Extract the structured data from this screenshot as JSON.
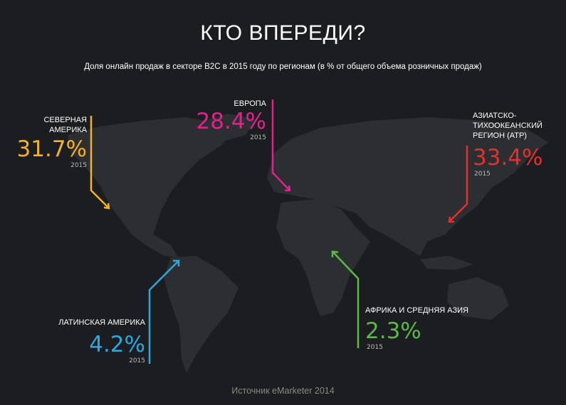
{
  "title": "КТО ВПЕРЕДИ?",
  "subtitle": "Доля онлайн продаж в секторе B2C в 2015 году по регионам (в % от общего объема розничных продаж)",
  "regions": [
    {
      "name": "СЕВЕРНАЯ АМЕРИКА",
      "value": "31.7%",
      "year": "2015",
      "color": "#f4b223"
    },
    {
      "name": "ЕВРОПА",
      "value": "28.4%",
      "year": "2015",
      "color": "#e2228c"
    },
    {
      "name": "АЗИАТСКО-ТИХООКЕАНСКИЙ РЕГИОН (АТР)",
      "name_lines": [
        "АЗИАТСКО-",
        "ТИХООКЕАНСКИЙ",
        "РЕГИОН (АТР)"
      ],
      "value": "33.4%",
      "year": "2015",
      "color": "#e2312f"
    },
    {
      "name": "ЛАТИНСКАЯ АМЕРИКА",
      "value": "4.2%",
      "year": "2015",
      "color": "#2da8df"
    },
    {
      "name": "АФРИКА И СРЕДНЯЯ АЗИЯ",
      "value": "2.3%",
      "year": "2015",
      "color": "#5cb947"
    }
  ],
  "source": "Источник eMarketer 2014"
}
